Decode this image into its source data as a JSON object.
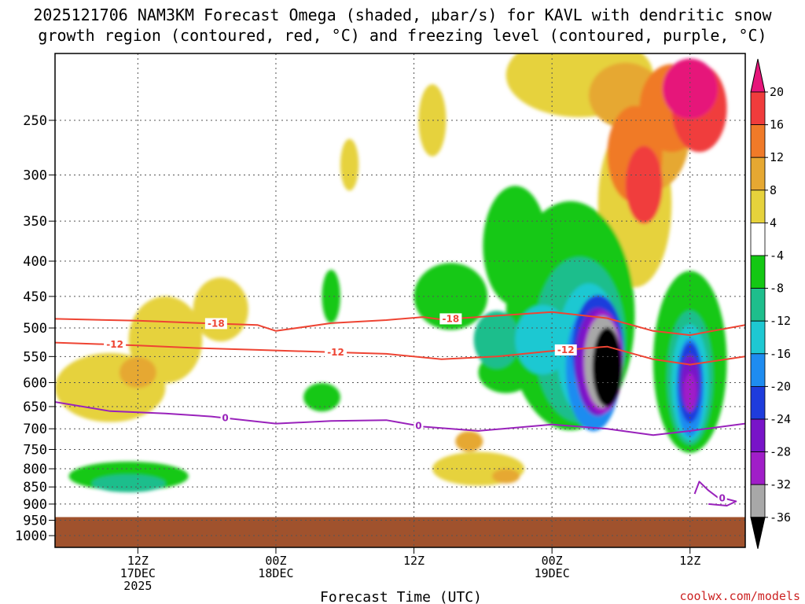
{
  "colors": {
    "snow_contour": "#ee4433",
    "freezing_contour": "#9922bb",
    "ground": "#a0522d",
    "grid": "#555555",
    "credit": "#cc2222"
  },
  "chart_data": {
    "type": "heatmap",
    "title_lines": [
      "2025121706 NAM3KM Forecast Omega (shaded, μbar/s) for KAVL with dendritic snow",
      "growth region (contoured, red, °C) and freezing level (contoured, purple, °C)"
    ],
    "xlabel": "Forecast Time (UTC)",
    "credit": "coolwx.com/models",
    "x_range_hours": [
      -3,
      72
    ],
    "x_ticks": [
      {
        "hour": 6,
        "lines": [
          "12Z",
          "17DEC",
          "2025"
        ]
      },
      {
        "hour": 21,
        "lines": [
          "00Z",
          "18DEC"
        ]
      },
      {
        "hour": 36,
        "lines": [
          "12Z"
        ]
      },
      {
        "hour": 51,
        "lines": [
          "00Z",
          "19DEC"
        ]
      },
      {
        "hour": 66,
        "lines": [
          "12Z"
        ]
      }
    ],
    "y_axis_hpa": {
      "top": 200,
      "bottom": 1040,
      "scale": "log"
    },
    "y_ticks": [
      250,
      300,
      350,
      400,
      450,
      500,
      550,
      600,
      650,
      700,
      750,
      800,
      850,
      900,
      950,
      1000
    ],
    "surface_hpa": 940,
    "colorbar": {
      "ticks": [
        "20",
        "16",
        "12",
        "8",
        "4",
        "-4",
        "-8",
        "-12",
        "-16",
        "-20",
        "-24",
        "-28",
        "-32",
        "-36"
      ],
      "bands": [
        {
          "from": 20,
          "to": 24,
          "color": "#e6157a"
        },
        {
          "from": 16,
          "to": 20,
          "color": "#f03c3c"
        },
        {
          "from": 12,
          "to": 16,
          "color": "#f07a28"
        },
        {
          "from": 8,
          "to": 12,
          "color": "#e6a832"
        },
        {
          "from": 4,
          "to": 8,
          "color": "#e6d23c"
        },
        {
          "from": -4,
          "to": 4,
          "color": "#ffffff"
        },
        {
          "from": -8,
          "to": -4,
          "color": "#14c814"
        },
        {
          "from": -12,
          "to": -8,
          "color": "#1ebe8c"
        },
        {
          "from": -16,
          "to": -12,
          "color": "#1ec8d2"
        },
        {
          "from": -20,
          "to": -16,
          "color": "#1e8cf0"
        },
        {
          "from": -24,
          "to": -20,
          "color": "#1e3cdc"
        },
        {
          "from": -28,
          "to": -24,
          "color": "#7814c8"
        },
        {
          "from": -32,
          "to": -28,
          "color": "#a01ec8"
        },
        {
          "from": -36,
          "to": -32,
          "color": "#a8a8a8"
        },
        {
          "from": -40,
          "to": -36,
          "color": "#000000"
        }
      ]
    },
    "omega_regions": [
      {
        "value": 6,
        "hour": 3,
        "hpa": 610,
        "dh": 6.0,
        "dp": 140
      },
      {
        "value": 6,
        "hour": 9,
        "hpa": 520,
        "dh": 4.0,
        "dp": 150
      },
      {
        "value": 6,
        "hour": 15,
        "hpa": 470,
        "dh": 3.0,
        "dp": 100
      },
      {
        "value": 6,
        "hour": 54,
        "hpa": 215,
        "dh": 8.0,
        "dp": 60
      },
      {
        "value": 6,
        "hour": 43,
        "hpa": 800,
        "dh": 5.0,
        "dp": 90
      },
      {
        "value": 6,
        "hour": 29,
        "hpa": 290,
        "dh": 1.0,
        "dp": 50
      },
      {
        "value": 6,
        "hour": 38,
        "hpa": 250,
        "dh": 1.5,
        "dp": 60
      },
      {
        "value": 6,
        "hour": 60,
        "hpa": 330,
        "dh": 4.0,
        "dp": 180
      },
      {
        "value": 10,
        "hour": 6,
        "hpa": 580,
        "dh": 2.0,
        "dp": 60
      },
      {
        "value": 10,
        "hour": 42,
        "hpa": 730,
        "dh": 1.5,
        "dp": 50
      },
      {
        "value": 10,
        "hour": 46,
        "hpa": 820,
        "dh": 1.5,
        "dp": 40
      },
      {
        "value": 10,
        "hour": 62,
        "hpa": 260,
        "dh": 4.0,
        "dp": 100
      },
      {
        "value": 10,
        "hour": 59,
        "hpa": 230,
        "dh": 4.0,
        "dp": 50
      },
      {
        "value": 14,
        "hour": 60,
        "hpa": 280,
        "dh": 3.0,
        "dp": 90
      },
      {
        "value": 14,
        "hour": 64,
        "hpa": 240,
        "dh": 3.5,
        "dp": 70
      },
      {
        "value": 18,
        "hour": 61,
        "hpa": 310,
        "dh": 2.0,
        "dp": 80
      },
      {
        "value": 18,
        "hour": 67,
        "hpa": 240,
        "dh": 3.0,
        "dp": 70
      },
      {
        "value": 22,
        "hour": 66,
        "hpa": 225,
        "dh": 3.0,
        "dp": 45
      },
      {
        "value": -6,
        "hour": 5,
        "hpa": 820,
        "dh": 6.5,
        "dp": 80
      },
      {
        "value": -6,
        "hour": 26,
        "hpa": 630,
        "dh": 2.0,
        "dp": 60
      },
      {
        "value": -6,
        "hour": 27,
        "hpa": 450,
        "dh": 1.0,
        "dp": 80
      },
      {
        "value": -6,
        "hour": 40,
        "hpa": 450,
        "dh": 4.0,
        "dp": 100
      },
      {
        "value": -6,
        "hour": 47,
        "hpa": 380,
        "dh": 3.5,
        "dp": 150
      },
      {
        "value": -6,
        "hour": 53,
        "hpa": 480,
        "dh": 7.0,
        "dp": 350
      },
      {
        "value": -6,
        "hour": 66,
        "hpa": 560,
        "dh": 4.0,
        "dp": 330
      },
      {
        "value": -6,
        "hour": 46,
        "hpa": 580,
        "dh": 3.0,
        "dp": 80
      },
      {
        "value": -10,
        "hour": 5,
        "hpa": 840,
        "dh": 4.0,
        "dp": 50
      },
      {
        "value": -10,
        "hour": 45,
        "hpa": 520,
        "dh": 2.5,
        "dp": 100
      },
      {
        "value": -10,
        "hour": 54,
        "hpa": 520,
        "dh": 5.0,
        "dp": 280
      },
      {
        "value": -10,
        "hour": 66,
        "hpa": 590,
        "dh": 2.5,
        "dp": 260
      },
      {
        "value": -14,
        "hour": 50,
        "hpa": 520,
        "dh": 3.0,
        "dp": 120
      },
      {
        "value": -14,
        "hour": 55,
        "hpa": 540,
        "dh": 3.5,
        "dp": 240
      },
      {
        "value": -14,
        "hour": 66,
        "hpa": 600,
        "dh": 2.0,
        "dp": 230
      },
      {
        "value": -18,
        "hour": 55.5,
        "hpa": 570,
        "dh": 3.0,
        "dp": 240
      },
      {
        "value": -18,
        "hour": 66,
        "hpa": 610,
        "dh": 1.5,
        "dp": 200
      },
      {
        "value": -22,
        "hour": 56,
        "hpa": 540,
        "dh": 2.8,
        "dp": 200
      },
      {
        "value": -22,
        "hour": 66,
        "hpa": 600,
        "dh": 1.3,
        "dp": 160
      },
      {
        "value": -26,
        "hour": 56,
        "hpa": 560,
        "dh": 2.5,
        "dp": 200
      },
      {
        "value": -26,
        "hour": 66,
        "hpa": 600,
        "dh": 1.0,
        "dp": 110
      },
      {
        "value": -30,
        "hour": 56.5,
        "hpa": 560,
        "dh": 2.2,
        "dp": 190
      },
      {
        "value": -30,
        "hour": 66,
        "hpa": 620,
        "dh": 0.7,
        "dp": 80
      },
      {
        "value": -34,
        "hour": 56.5,
        "hpa": 560,
        "dh": 2.0,
        "dp": 170
      },
      {
        "value": -38,
        "hour": 57,
        "hpa": 570,
        "dh": 1.6,
        "dp": 150
      }
    ],
    "contours": [
      {
        "name": "dgz-minus-18",
        "label": "-18",
        "kind": "snow",
        "hours": [
          -3,
          6,
          13,
          19,
          21,
          27,
          33,
          37,
          39,
          45,
          51,
          57,
          62,
          66,
          72
        ],
        "hpa": [
          485,
          488,
          492,
          495,
          505,
          492,
          487,
          482,
          486,
          480,
          474,
          484,
          505,
          512,
          495
        ],
        "label_hours": [
          14.5,
          40
        ]
      },
      {
        "name": "dgz-minus-12",
        "label": "-12",
        "kind": "snow",
        "hours": [
          -3,
          6,
          13,
          19,
          27,
          33,
          39,
          45,
          51,
          57,
          62,
          66,
          72
        ],
        "hpa": [
          525,
          530,
          535,
          538,
          542,
          545,
          555,
          550,
          540,
          532,
          555,
          565,
          550
        ],
        "label_hours": [
          3.5,
          27.5,
          52.5
        ]
      },
      {
        "name": "freezing-level-0",
        "label": "0",
        "kind": "freeze",
        "hours": [
          -3,
          3,
          9,
          14,
          21,
          27,
          33,
          37,
          43,
          51,
          57,
          62,
          66,
          72
        ],
        "hpa": [
          640,
          660,
          665,
          672,
          688,
          682,
          680,
          695,
          705,
          690,
          700,
          715,
          705,
          688
        ],
        "label_hours": [
          15.5,
          36.5
        ]
      },
      {
        "name": "freezing-level-0-low",
        "label": "0",
        "kind": "freeze",
        "hours": [
          66.5,
          67,
          68,
          69,
          70,
          71,
          70,
          68
        ],
        "hpa": [
          870,
          835,
          860,
          880,
          885,
          892,
          905,
          900
        ],
        "label_hours": [
          69.5
        ]
      }
    ]
  }
}
